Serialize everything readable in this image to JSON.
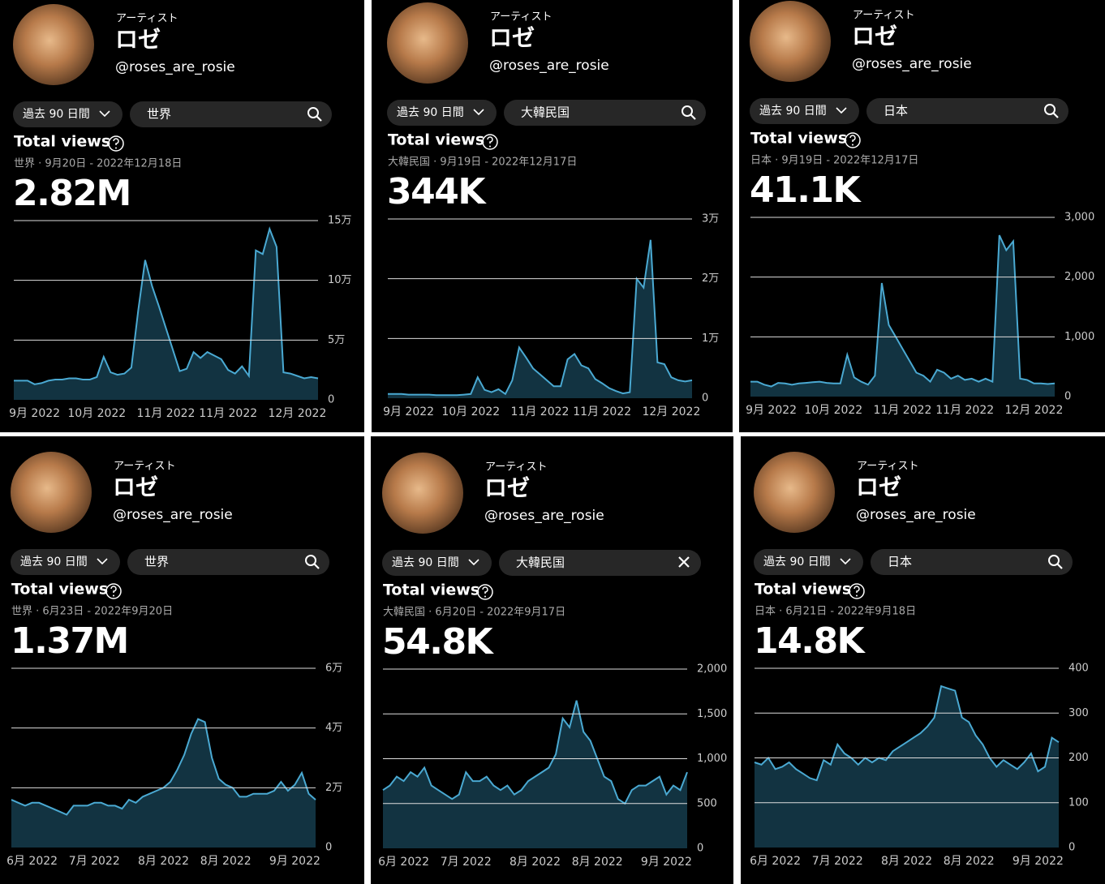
{
  "panels": [
    {
      "label": "アーティスト",
      "name": "ロゼ",
      "handle": "@roses_are_rosie",
      "period": "過去 90 日間",
      "region": "世界",
      "metric": "Total views",
      "range": "世界 · 9月20日 - 2022年12月18日",
      "total": "2.82M"
    },
    {
      "label": "アーティスト",
      "name": "ロゼ",
      "handle": "@roses_are_rosie",
      "period": "過去 90 日間",
      "region": "大韓民国",
      "metric": "Total views",
      "range": "大韓民国 · 9月19日 - 2022年12月17日",
      "total": "344K"
    },
    {
      "label": "アーティスト",
      "name": "ロゼ",
      "handle": "@roses_are_rosie",
      "period": "過去 90 日間",
      "region": "日本",
      "metric": "Total views",
      "range": "日本 · 9月19日 - 2022年12月17日",
      "total": "41.1K"
    },
    {
      "label": "アーティスト",
      "name": "ロゼ",
      "handle": "@roses_are_rosie",
      "period": "過去 90 日間",
      "region": "世界",
      "metric": "Total views",
      "range": "世界 · 6月23日 - 2022年9月20日",
      "total": "1.37M"
    },
    {
      "label": "アーティスト",
      "name": "ロゼ",
      "handle": "@roses_are_rosie",
      "period": "過去 90 日間",
      "region": "大韓民国",
      "metric": "Total views",
      "range": "大韓民国 · 6月20日 - 2022年9月17日",
      "total": "54.8K"
    },
    {
      "label": "アーティスト",
      "name": "ロゼ",
      "handle": "@roses_are_rosie",
      "period": "過去 90 日間",
      "region": "日本",
      "metric": "Total views",
      "range": "日本 · 6月21日 - 2022年9月18日",
      "total": "14.8K"
    }
  ],
  "chart_data": [
    {
      "type": "area",
      "color": "#4aa9d2",
      "fill": "#123341",
      "grid": true,
      "categories": [
        null,
        null,
        null,
        "9月 2022",
        null,
        null,
        null,
        null,
        null,
        null,
        null,
        null,
        "10月 2022",
        null,
        null,
        null,
        null,
        null,
        null,
        null,
        null,
        null,
        "11月 2022",
        null,
        null,
        null,
        null,
        null,
        null,
        null,
        null,
        "11月 2022",
        null,
        null,
        null,
        null,
        null,
        null,
        null,
        null,
        null,
        "12月 2022",
        null,
        null,
        null
      ],
      "values": [
        16000,
        16000,
        16000,
        13000,
        14000,
        16000,
        17000,
        17000,
        18000,
        18000,
        17000,
        17000,
        19000,
        36000,
        23000,
        21000,
        22000,
        27000,
        75000,
        117000,
        95000,
        78000,
        60000,
        42000,
        24000,
        26000,
        40000,
        35000,
        40000,
        37000,
        34000,
        25000,
        22000,
        28000,
        20000,
        125000,
        122000,
        143000,
        128000,
        23000,
        22000,
        20000,
        18000,
        19000,
        18000
      ],
      "ylim": [
        0,
        150000
      ],
      "yticks": [
        0,
        {
          "value": 50000,
          "label": "5万"
        },
        {
          "value": 100000,
          "label": "10万"
        },
        {
          "value": 150000,
          "label": "15万"
        }
      ]
    },
    {
      "type": "area",
      "color": "#4aa9d2",
      "fill": "#123341",
      "grid": true,
      "categories": [
        null,
        null,
        null,
        "9月 2022",
        null,
        null,
        null,
        null,
        null,
        null,
        null,
        null,
        "10月 2022",
        null,
        null,
        null,
        null,
        null,
        null,
        null,
        null,
        null,
        "11月 2022",
        null,
        null,
        null,
        null,
        null,
        null,
        null,
        null,
        "11月 2022",
        null,
        null,
        null,
        null,
        null,
        null,
        null,
        null,
        null,
        "12月 2022",
        null,
        null,
        null
      ],
      "values": [
        700,
        700,
        700,
        600,
        600,
        600,
        600,
        500,
        500,
        500,
        500,
        600,
        700,
        3500,
        1400,
        1000,
        1500,
        700,
        3000,
        8500,
        6800,
        5000,
        4000,
        3000,
        2000,
        2000,
        6500,
        7400,
        5500,
        5000,
        3200,
        2500,
        1700,
        1200,
        800,
        1000,
        20000,
        18500,
        26500,
        6000,
        5700,
        3500,
        3000,
        2800,
        3000
      ],
      "ylim": [
        0,
        30000
      ],
      "yticks": [
        0,
        {
          "value": 10000,
          "label": "1万"
        },
        {
          "value": 20000,
          "label": "2万"
        },
        {
          "value": 30000,
          "label": "3万"
        }
      ]
    },
    {
      "type": "area",
      "color": "#4aa9d2",
      "fill": "#123341",
      "grid": true,
      "categories": [
        null,
        null,
        null,
        "9月 2022",
        null,
        null,
        null,
        null,
        null,
        null,
        null,
        null,
        "10月 2022",
        null,
        null,
        null,
        null,
        null,
        null,
        null,
        null,
        null,
        "11月 2022",
        null,
        null,
        null,
        null,
        null,
        null,
        null,
        null,
        "11月 2022",
        null,
        null,
        null,
        null,
        null,
        null,
        null,
        null,
        null,
        "12月 2022",
        null,
        null,
        null
      ],
      "values": [
        250,
        250,
        200,
        170,
        230,
        220,
        200,
        220,
        230,
        240,
        250,
        230,
        220,
        220,
        700,
        320,
        250,
        200,
        350,
        1900,
        1200,
        1000,
        800,
        600,
        400,
        350,
        250,
        450,
        400,
        300,
        350,
        280,
        300,
        250,
        300,
        250,
        2700,
        2450,
        2600,
        300,
        280,
        220,
        220,
        210,
        220
      ],
      "ylim": [
        0,
        3000
      ],
      "yticks": [
        0,
        {
          "value": 1000,
          "label": "1,000"
        },
        {
          "value": 2000,
          "label": "2,000"
        },
        {
          "value": 3000,
          "label": "3,000"
        }
      ]
    },
    {
      "type": "area",
      "color": "#4aa9d2",
      "fill": "#123341",
      "grid": true,
      "categories": [
        null,
        null,
        null,
        "6月 2022",
        null,
        null,
        null,
        null,
        null,
        null,
        null,
        null,
        "7月 2022",
        null,
        null,
        null,
        null,
        null,
        null,
        null,
        null,
        null,
        "8月 2022",
        null,
        null,
        null,
        null,
        null,
        null,
        null,
        null,
        "8月 2022",
        null,
        null,
        null,
        null,
        null,
        null,
        null,
        null,
        null,
        "9月 2022",
        null,
        null,
        null
      ],
      "values": [
        16000,
        15000,
        14000,
        15000,
        15000,
        14000,
        13000,
        12000,
        11000,
        14000,
        14000,
        14000,
        15000,
        15000,
        14000,
        14000,
        13000,
        16000,
        15000,
        17000,
        18000,
        19000,
        20000,
        22000,
        26000,
        31000,
        38000,
        43000,
        42000,
        30000,
        23000,
        21000,
        20000,
        17000,
        17000,
        18000,
        18000,
        18000,
        19000,
        22000,
        19000,
        21000,
        25000,
        18000,
        16000
      ],
      "ylim": [
        0,
        60000
      ],
      "yticks": [
        0,
        {
          "value": 20000,
          "label": "2万"
        },
        {
          "value": 40000,
          "label": "4万"
        },
        {
          "value": 60000,
          "label": "6万"
        }
      ]
    },
    {
      "type": "area",
      "color": "#4aa9d2",
      "fill": "#123341",
      "grid": true,
      "categories": [
        null,
        null,
        null,
        "6月 2022",
        null,
        null,
        null,
        null,
        null,
        null,
        null,
        null,
        "7月 2022",
        null,
        null,
        null,
        null,
        null,
        null,
        null,
        null,
        null,
        "8月 2022",
        null,
        null,
        null,
        null,
        null,
        null,
        null,
        null,
        "8月 2022",
        null,
        null,
        null,
        null,
        null,
        null,
        null,
        null,
        null,
        "9月 2022",
        null,
        null,
        null
      ],
      "values": [
        650,
        700,
        800,
        750,
        850,
        800,
        900,
        700,
        650,
        600,
        550,
        600,
        850,
        750,
        750,
        800,
        700,
        650,
        700,
        600,
        650,
        750,
        800,
        850,
        900,
        1050,
        1450,
        1350,
        1650,
        1300,
        1200,
        1000,
        800,
        750,
        550,
        500,
        650,
        700,
        700,
        750,
        800,
        600,
        700,
        650,
        850
      ],
      "ylim": [
        0,
        2000
      ],
      "yticks": [
        0,
        500,
        {
          "value": 1000,
          "label": "1,000"
        },
        {
          "value": 1500,
          "label": "1,500"
        },
        {
          "value": 2000,
          "label": "2,000"
        }
      ]
    },
    {
      "type": "area",
      "color": "#4aa9d2",
      "fill": "#123341",
      "grid": true,
      "categories": [
        null,
        null,
        null,
        "6月 2022",
        null,
        null,
        null,
        null,
        null,
        null,
        null,
        null,
        "7月 2022",
        null,
        null,
        null,
        null,
        null,
        null,
        null,
        null,
        null,
        "8月 2022",
        null,
        null,
        null,
        null,
        null,
        null,
        null,
        null,
        "8月 2022",
        null,
        null,
        null,
        null,
        null,
        null,
        null,
        null,
        null,
        "9月 2022",
        null,
        null,
        null
      ],
      "values": [
        190,
        185,
        200,
        175,
        180,
        190,
        175,
        165,
        155,
        150,
        195,
        185,
        230,
        210,
        200,
        185,
        200,
        190,
        200,
        195,
        215,
        225,
        235,
        245,
        255,
        270,
        290,
        360,
        355,
        350,
        290,
        280,
        250,
        230,
        200,
        180,
        195,
        185,
        175,
        190,
        210,
        170,
        180,
        245,
        235
      ],
      "ylim": [
        0,
        400
      ],
      "yticks": [
        0,
        100,
        200,
        300,
        400
      ]
    }
  ]
}
